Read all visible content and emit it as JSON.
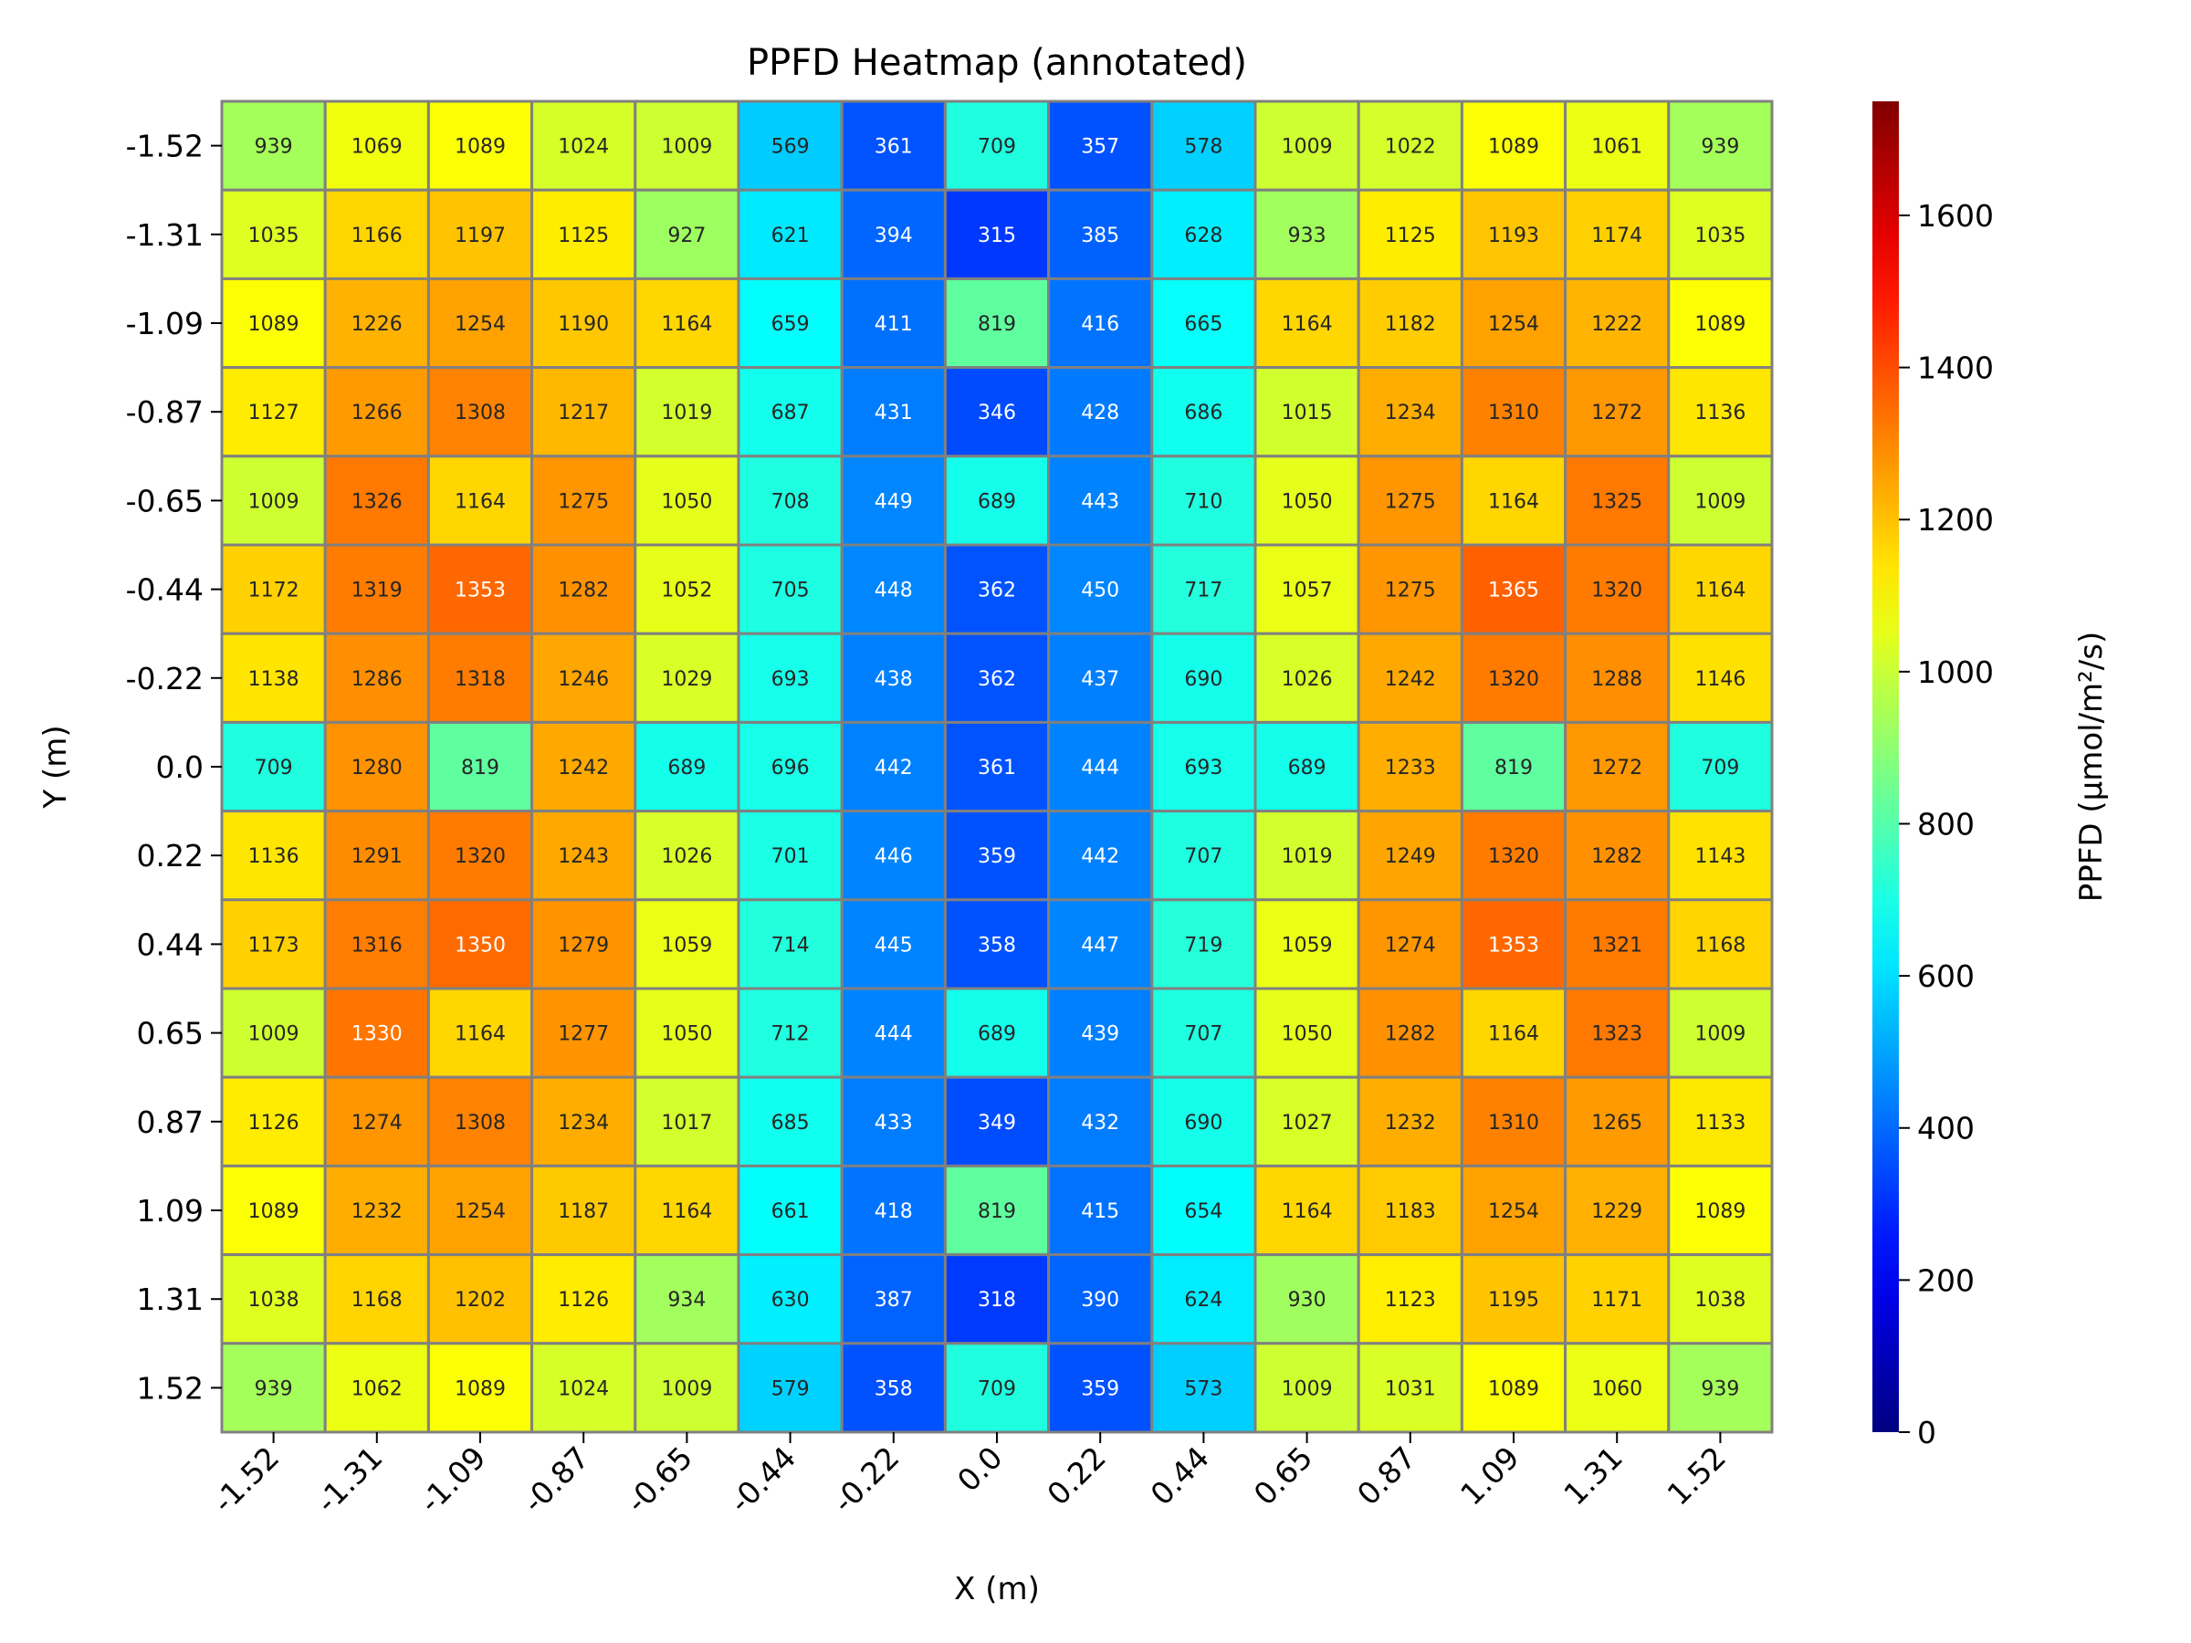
{
  "chart_data": {
    "type": "heatmap",
    "title": "PPFD Heatmap (annotated)",
    "xlabel": "X (m)",
    "ylabel": "Y (m)",
    "colorbar_label": "PPFD (µmol/m²/s)",
    "colormap": "jet",
    "color_range": [
      0,
      1750
    ],
    "colorbar_ticks": [
      0,
      200,
      400,
      600,
      800,
      1000,
      1200,
      1400,
      1600
    ],
    "x_ticks": [
      "-1.52",
      "-1.31",
      "-1.09",
      "-0.87",
      "-0.65",
      "-0.44",
      "-0.22",
      "0.0",
      "0.22",
      "0.44",
      "0.65",
      "0.87",
      "1.09",
      "1.31",
      "1.52"
    ],
    "y_ticks": [
      "-1.52",
      "-1.31",
      "-1.09",
      "-0.87",
      "-0.65",
      "-0.44",
      "-0.22",
      "0.0",
      "0.22",
      "0.44",
      "0.65",
      "0.87",
      "1.09",
      "1.31",
      "1.52"
    ],
    "cell_border_color": "#808080",
    "values": [
      [
        939,
        1069,
        1089,
        1024,
        1009,
        569,
        361,
        709,
        357,
        578,
        1009,
        1022,
        1089,
        1061,
        939
      ],
      [
        1035,
        1166,
        1197,
        1125,
        927,
        621,
        394,
        315,
        385,
        628,
        933,
        1125,
        1193,
        1174,
        1035
      ],
      [
        1089,
        1226,
        1254,
        1190,
        1164,
        659,
        411,
        819,
        416,
        665,
        1164,
        1182,
        1254,
        1222,
        1089
      ],
      [
        1127,
        1266,
        1308,
        1217,
        1019,
        687,
        431,
        346,
        428,
        686,
        1015,
        1234,
        1310,
        1272,
        1136
      ],
      [
        1009,
        1326,
        1164,
        1275,
        1050,
        708,
        449,
        689,
        443,
        710,
        1050,
        1275,
        1164,
        1325,
        1009
      ],
      [
        1172,
        1319,
        1353,
        1282,
        1052,
        705,
        448,
        362,
        450,
        717,
        1057,
        1275,
        1365,
        1320,
        1164
      ],
      [
        1138,
        1286,
        1318,
        1246,
        1029,
        693,
        438,
        362,
        437,
        690,
        1026,
        1242,
        1320,
        1288,
        1146
      ],
      [
        709,
        1280,
        819,
        1242,
        689,
        696,
        442,
        361,
        444,
        693,
        689,
        1233,
        819,
        1272,
        709
      ],
      [
        1136,
        1291,
        1320,
        1243,
        1026,
        701,
        446,
        359,
        442,
        707,
        1019,
        1249,
        1320,
        1282,
        1143
      ],
      [
        1173,
        1316,
        1350,
        1279,
        1059,
        714,
        445,
        358,
        447,
        719,
        1059,
        1274,
        1353,
        1321,
        1168
      ],
      [
        1009,
        1330,
        1164,
        1277,
        1050,
        712,
        444,
        689,
        439,
        707,
        1050,
        1282,
        1164,
        1323,
        1009
      ],
      [
        1126,
        1274,
        1308,
        1234,
        1017,
        685,
        433,
        349,
        432,
        690,
        1027,
        1232,
        1310,
        1265,
        1133
      ],
      [
        1089,
        1232,
        1254,
        1187,
        1164,
        661,
        418,
        819,
        415,
        654,
        1164,
        1183,
        1254,
        1229,
        1089
      ],
      [
        1038,
        1168,
        1202,
        1126,
        934,
        630,
        387,
        318,
        390,
        624,
        930,
        1123,
        1195,
        1171,
        1038
      ],
      [
        939,
        1062,
        1089,
        1024,
        1009,
        579,
        358,
        709,
        359,
        573,
        1009,
        1031,
        1089,
        1060,
        939
      ]
    ]
  }
}
